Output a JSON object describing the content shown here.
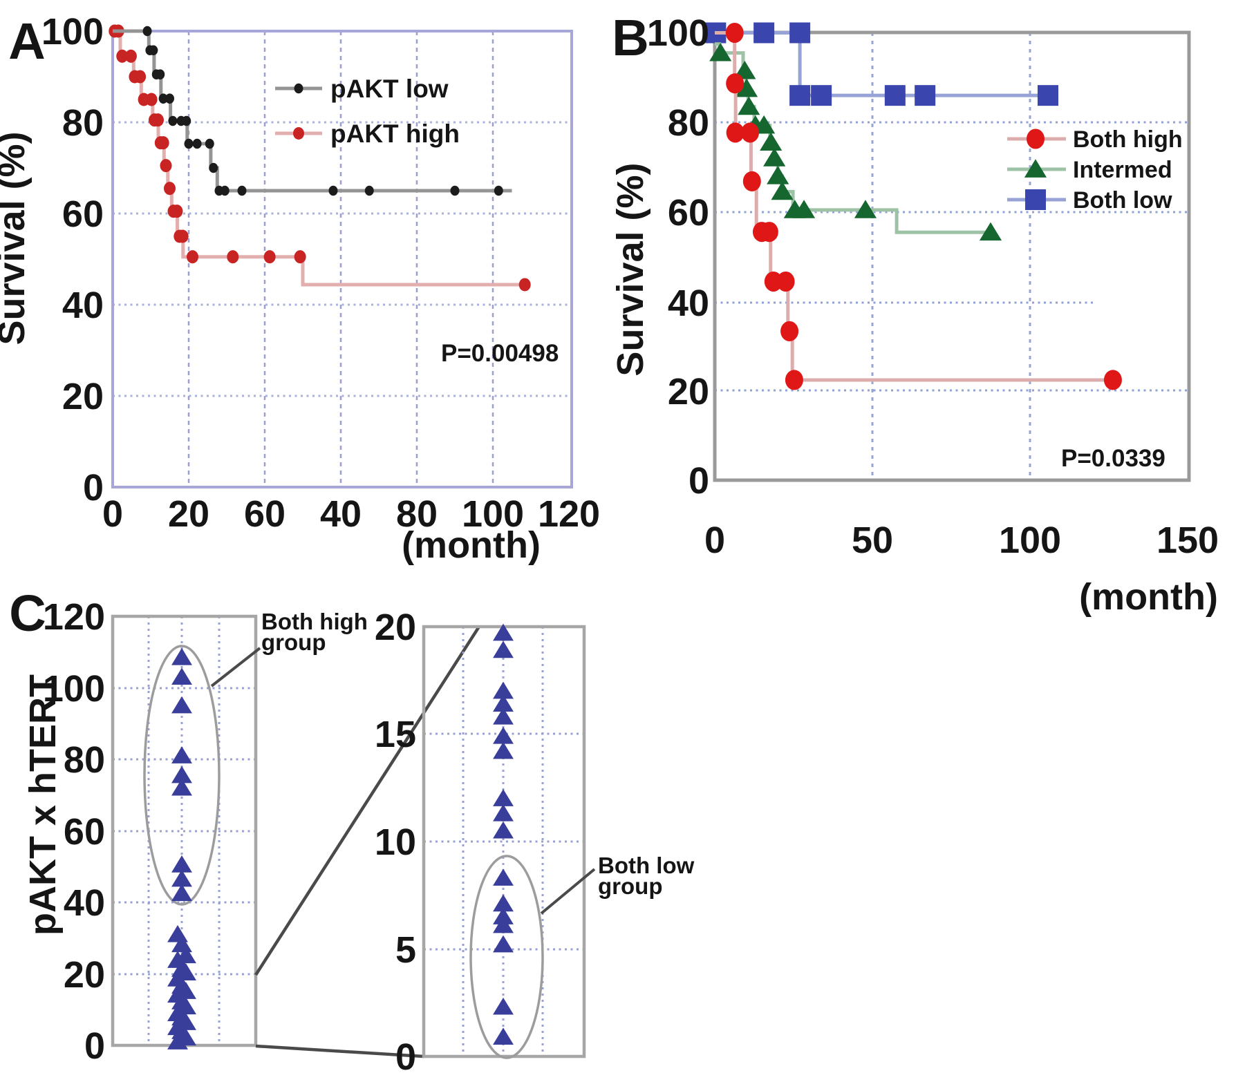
{
  "figure": {
    "description_visible_text_only": true
  },
  "chart_data": [
    {
      "id": "panel-a",
      "panel_label": "A",
      "type": "line",
      "subtype": "kaplan-meier-step",
      "y_axis_title": "Survival (%)",
      "x_axis_unit": "(month)",
      "xlim": [
        0,
        120
      ],
      "ylim": [
        0,
        100
      ],
      "x_tick_labels": [
        "0",
        "20",
        "60",
        "40",
        "80",
        "100",
        "120"
      ],
      "y_tick_labels": [
        "100",
        "80",
        "60",
        "40",
        "20",
        "0"
      ],
      "p_value": "P=0.00498",
      "grid": true,
      "legend_position": "top-right-inside",
      "frame_color": "#a6a6d8",
      "grid_h_color": "#a9b1de",
      "grid_v_color": "#9b9fd0",
      "series": [
        {
          "name": "pAKT high",
          "marker": "dot",
          "marker_color": "#c92424",
          "line_color": "#e2aeae",
          "points": [
            [
              0,
              100
            ],
            [
              2,
              100
            ],
            [
              2,
              94.5
            ],
            [
              5.5,
              94.5
            ],
            [
              5.5,
              90
            ],
            [
              7.5,
              90
            ],
            [
              7.5,
              85
            ],
            [
              10.5,
              85
            ],
            [
              10.5,
              80.5
            ],
            [
              12,
              80.5
            ],
            [
              12,
              75.5
            ],
            [
              13.5,
              75.5
            ],
            [
              13.5,
              70.5
            ],
            [
              14.5,
              70.5
            ],
            [
              14.5,
              65.5
            ],
            [
              15.5,
              65.5
            ],
            [
              15.5,
              60.5
            ],
            [
              17,
              60.5
            ],
            [
              17,
              55
            ],
            [
              18.5,
              55
            ],
            [
              18.5,
              50.5
            ],
            [
              50,
              50.5
            ],
            [
              50,
              44.4
            ],
            [
              108.4,
              44.4
            ]
          ],
          "markers": [
            [
              0.5,
              100
            ],
            [
              1.5,
              100
            ],
            [
              2.5,
              94.5
            ],
            [
              4.8,
              94.5
            ],
            [
              5.8,
              90
            ],
            [
              7.2,
              90
            ],
            [
              8.2,
              85
            ],
            [
              10.2,
              85
            ],
            [
              11,
              80.5
            ],
            [
              11.9,
              80.5
            ],
            [
              12.6,
              75.5
            ],
            [
              13.3,
              75.5
            ],
            [
              14,
              70.5
            ],
            [
              15,
              65.5
            ],
            [
              16,
              60.5
            ],
            [
              16.9,
              60.5
            ],
            [
              17.6,
              55
            ],
            [
              18.4,
              55
            ],
            [
              21,
              50.5
            ],
            [
              31.6,
              50.5
            ],
            [
              41.3,
              50.5
            ],
            [
              49.3,
              50.5
            ],
            [
              108.4,
              44.4
            ]
          ]
        },
        {
          "name": "pAKT low",
          "marker": "dot",
          "marker_color": "#1c1c1c",
          "line_color": "#949494",
          "points": [
            [
              0,
              100
            ],
            [
              9.5,
              100
            ],
            [
              9.5,
              95.8
            ],
            [
              10.9,
              95.8
            ],
            [
              10.9,
              90.5
            ],
            [
              12.7,
              90.5
            ],
            [
              12.7,
              85.2
            ],
            [
              15.2,
              85.2
            ],
            [
              15.2,
              80.3
            ],
            [
              19.6,
              80.3
            ],
            [
              19.6,
              75.3
            ],
            [
              25.8,
              75.3
            ],
            [
              25.8,
              70
            ],
            [
              27.5,
              70
            ],
            [
              27.5,
              65
            ],
            [
              105,
              65
            ]
          ],
          "markers": [
            [
              9.1,
              100
            ],
            [
              9.8,
              95.8
            ],
            [
              10.7,
              95.8
            ],
            [
              11.5,
              90.5
            ],
            [
              12.5,
              90.5
            ],
            [
              13.3,
              85.2
            ],
            [
              15,
              85.2
            ],
            [
              15.8,
              80.3
            ],
            [
              18,
              80.3
            ],
            [
              19.4,
              80.3
            ],
            [
              20,
              75.3
            ],
            [
              22.2,
              75.3
            ],
            [
              25.5,
              75.3
            ],
            [
              26.5,
              70
            ],
            [
              28,
              65
            ],
            [
              29.5,
              65
            ],
            [
              34,
              65
            ],
            [
              58,
              65
            ],
            [
              67.5,
              65
            ],
            [
              90,
              65
            ],
            [
              101.5,
              65
            ]
          ]
        }
      ],
      "legend": [
        {
          "label": "pAKT low"
        },
        {
          "label": "pAKT high"
        }
      ]
    },
    {
      "id": "panel-b",
      "panel_label": "B",
      "type": "line",
      "subtype": "kaplan-meier-step",
      "y_axis_title": "Survival (%)",
      "x_axis_unit": "(month)",
      "xlim": [
        0,
        150
      ],
      "ylim": [
        0,
        100
      ],
      "x_tick_labels": [
        "0",
        "50",
        "100",
        "150"
      ],
      "y_tick_labels": [
        "100",
        "80",
        "60",
        "40",
        "20",
        "0"
      ],
      "p_value": "P=0.0339",
      "grid": true,
      "legend_position": "right-inside",
      "frame_color": "#9a9a9a",
      "grid_h_color": "#8fa0d4",
      "grid_v_color": "#98a6cf",
      "series": [
        {
          "name": "Both low",
          "marker": "square",
          "marker_color": "#3a46ae",
          "line_color": "#97a2d6",
          "points": [
            [
              0,
              100
            ],
            [
              27,
              100
            ],
            [
              27,
              86
            ],
            [
              105.7,
              86
            ]
          ],
          "markers": [
            [
              0.3,
              100
            ],
            [
              15.6,
              100
            ],
            [
              27,
              100
            ],
            [
              27,
              86
            ],
            [
              33.8,
              86
            ],
            [
              57.2,
              86
            ],
            [
              66.7,
              86
            ],
            [
              105.7,
              86
            ]
          ]
        },
        {
          "name": "Intermed",
          "marker": "triangle",
          "marker_color": "#15672f",
          "line_color": "#9dc2a6",
          "points": [
            [
              0,
              97.5
            ],
            [
              1.5,
              97.5
            ],
            [
              1.5,
              95.5
            ],
            [
              9,
              95.5
            ],
            [
              9,
              91.5
            ],
            [
              10,
              91.5
            ],
            [
              10,
              87.5
            ],
            [
              10.6,
              87.5
            ],
            [
              10.6,
              83.5
            ],
            [
              12.5,
              83.5
            ],
            [
              12.5,
              79.3
            ],
            [
              17.5,
              79.3
            ],
            [
              17.5,
              75.5
            ],
            [
              18.8,
              75.5
            ],
            [
              18.8,
              72
            ],
            [
              20,
              72
            ],
            [
              20,
              68
            ],
            [
              21.3,
              68
            ],
            [
              21.3,
              64.5
            ],
            [
              24.8,
              64.5
            ],
            [
              24.8,
              60.4
            ],
            [
              57.7,
              60.4
            ],
            [
              57.7,
              55.4
            ],
            [
              87.5,
              55.4
            ]
          ],
          "markers": [
            [
              1.8,
              95.5
            ],
            [
              9.5,
              91.5
            ],
            [
              10.1,
              87.5
            ],
            [
              10.8,
              83.5
            ],
            [
              12.9,
              79.3
            ],
            [
              15.6,
              79.3
            ],
            [
              17.8,
              75.5
            ],
            [
              18.9,
              72
            ],
            [
              20,
              68
            ],
            [
              21.4,
              64.5
            ],
            [
              25.4,
              60.4
            ],
            [
              28.3,
              60.4
            ],
            [
              47.8,
              60.4
            ],
            [
              87.5,
              55.4
            ]
          ]
        },
        {
          "name": "Both high",
          "marker": "circle",
          "marker_color": "#e01717",
          "line_color": "#ddadad",
          "points": [
            [
              0,
              100
            ],
            [
              6.3,
              100
            ],
            [
              6.3,
              88.7
            ],
            [
              6.6,
              88.7
            ],
            [
              6.6,
              77.7
            ],
            [
              11.5,
              77.7
            ],
            [
              11.5,
              66.8
            ],
            [
              13.2,
              66.8
            ],
            [
              13.2,
              55.5
            ],
            [
              17.7,
              55.5
            ],
            [
              17.7,
              44.4
            ],
            [
              23.2,
              44.4
            ],
            [
              23.2,
              33.3
            ],
            [
              24.6,
              33.3
            ],
            [
              24.6,
              22.4
            ],
            [
              126.3,
              22.4
            ]
          ],
          "markers": [
            [
              6.3,
              100
            ],
            [
              6.4,
              88.7
            ],
            [
              6.5,
              77.7
            ],
            [
              11.2,
              77.7
            ],
            [
              11.8,
              66.8
            ],
            [
              14.9,
              55.5
            ],
            [
              17.3,
              55.5
            ],
            [
              18.6,
              44.4
            ],
            [
              22.5,
              44.4
            ],
            [
              23.7,
              33.3
            ],
            [
              25.2,
              22.4
            ],
            [
              126.3,
              22.4
            ]
          ]
        }
      ],
      "legend": [
        {
          "label": "Both high"
        },
        {
          "label": "Intermed"
        },
        {
          "label": "Both low"
        }
      ]
    },
    {
      "id": "panel-c",
      "panel_label": "C",
      "type": "scatter",
      "subtype": "strip-plot-with-zoom-inset",
      "y_axis_title": "pAKT x hTERT",
      "marker_color": "#3a3e9b",
      "frame_color": "#a6a6a6",
      "grid_color": "#98a0d2",
      "ellipse_color": "#9c9c9c",
      "connector_color": "#4a4a4a",
      "plots": [
        {
          "name": "full-range",
          "ylim": [
            0,
            120
          ],
          "y_tick_labels": [
            "120",
            "100",
            "80",
            "60",
            "40",
            "20",
            "0"
          ],
          "values": [
            108.5,
            103,
            95,
            81,
            75.5,
            72,
            50.5,
            46.5,
            42.5,
            31,
            28.2,
            25.1,
            23.8,
            21.3,
            20.3,
            18.6,
            16.6,
            15.1,
            14.1,
            12.2,
            10.8,
            8.9,
            7.7,
            6.4,
            5,
            3.9,
            2.1,
            1
          ],
          "annotation_lines": [
            "Both high",
            "group"
          ]
        },
        {
          "name": "zoom-0-20",
          "ylim": [
            0,
            20
          ],
          "y_tick_labels": [
            "20",
            "15",
            "10",
            "5",
            "0"
          ],
          "values": [
            19.7,
            18.9,
            17,
            16.4,
            15.8,
            14.9,
            14.2,
            12,
            11.3,
            10.5,
            8.3,
            7.1,
            6.5,
            6.1,
            5.2,
            2.3,
            0.9
          ],
          "annotation_lines": [
            "Both low",
            "group"
          ]
        }
      ]
    }
  ]
}
